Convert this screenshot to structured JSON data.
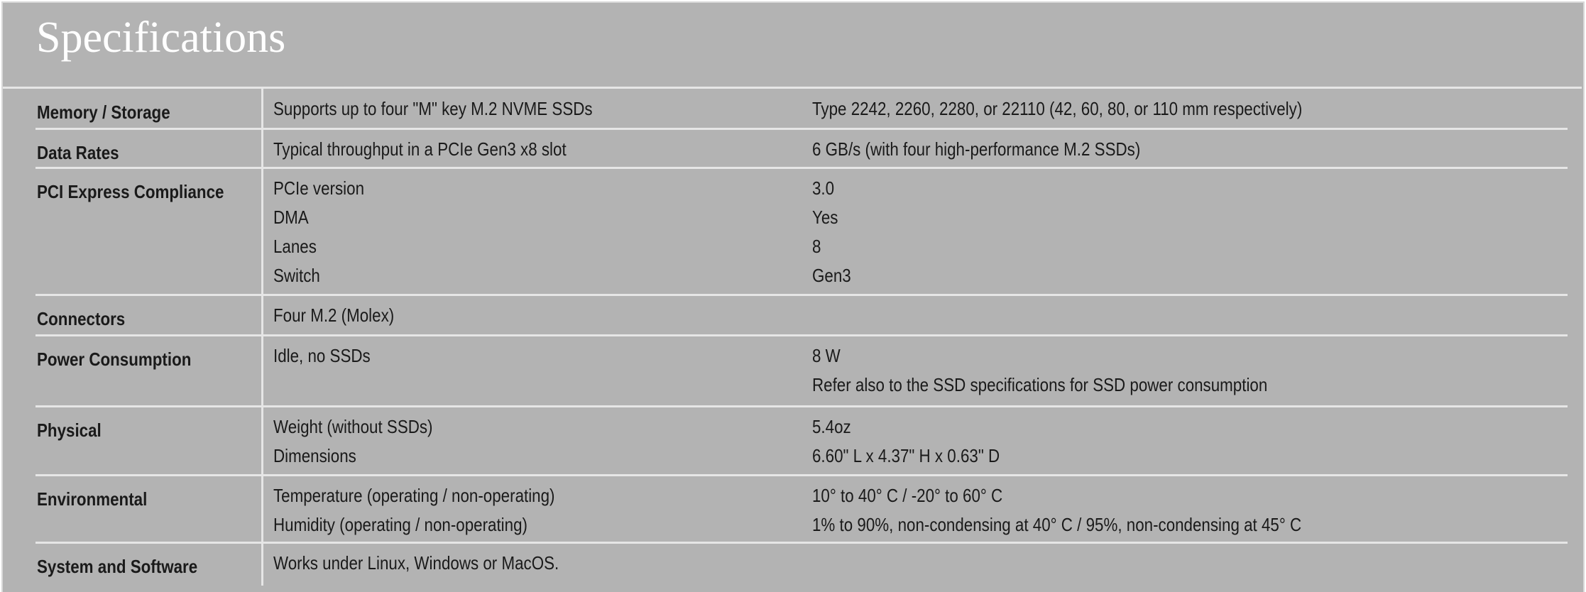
{
  "title": "Specifications",
  "rows": [
    {
      "label": "Memory / Storage",
      "col2": [
        "Supports up to four \"M\" key M.2 NVME SSDs"
      ],
      "col3": [
        "Type 2242, 2260, 2280, or 22110 (42, 60, 80, or 110 mm respectively)"
      ]
    },
    {
      "label": "Data Rates",
      "col2": [
        "Typical throughput in a PCIe Gen3 x8 slot"
      ],
      "col3": [
        "6 GB/s (with four high-performance M.2 SSDs)"
      ]
    },
    {
      "label": "PCI Express Compliance",
      "col2": [
        "PCIe version",
        "DMA",
        "Lanes",
        "Switch"
      ],
      "col3": [
        "3.0",
        "Yes",
        "8",
        "Gen3"
      ]
    },
    {
      "label": "Connectors",
      "col2": [
        "Four M.2 (Molex)"
      ],
      "col3": []
    },
    {
      "label": "Power Consumption",
      "col2": [
        "Idle, no SSDs"
      ],
      "col3": [
        "8 W",
        "Refer also to the SSD specifications for SSD power consumption"
      ]
    },
    {
      "label": "Physical",
      "col2": [
        "Weight (without SSDs)",
        "Dimensions"
      ],
      "col3": [
        "5.4oz",
        "6.60\" L x 4.37\" H x 0.63\" D"
      ]
    },
    {
      "label": "Environmental",
      "col2": [
        "Temperature (operating / non-operating)",
        "Humidity (operating / non-operating)"
      ],
      "col3": [
        "10° to 40° C / -20° to 60° C",
        "1% to 90%, non-condensing at 40° C / 95%, non-condensing at 45° C"
      ]
    },
    {
      "label": "System and Software",
      "col2": [
        "Works under Linux, Windows or MacOS."
      ],
      "col3": []
    }
  ]
}
